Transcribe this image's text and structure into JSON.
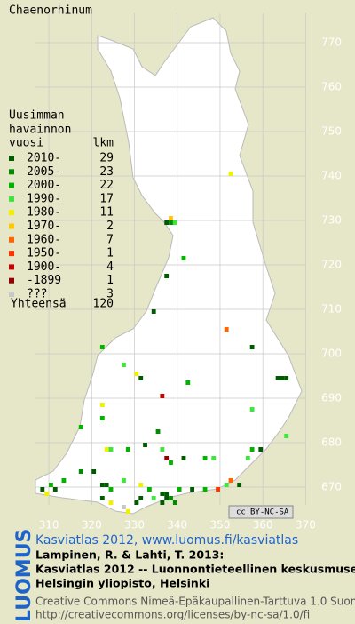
{
  "title": "Chaenorhinum",
  "legend": {
    "heading": [
      "Uusimman",
      "havainnon",
      "vuosi"
    ],
    "count_heading": "lkm",
    "entries": [
      {
        "label": "2010-",
        "count": 29,
        "color": "#005a00"
      },
      {
        "label": "2005-",
        "count": 23,
        "color": "#008c00"
      },
      {
        "label": "2000-",
        "count": 22,
        "color": "#00b400"
      },
      {
        "label": "1990-",
        "count": 17,
        "color": "#3ce63c"
      },
      {
        "label": "1980-",
        "count": 11,
        "color": "#f0f000"
      },
      {
        "label": "1970-",
        "count": 2,
        "color": "#ffc800"
      },
      {
        "label": "1960-",
        "count": 7,
        "color": "#ff6400"
      },
      {
        "label": "1950-",
        "count": 1,
        "color": "#ff3200"
      },
      {
        "label": "1900-",
        "count": 4,
        "color": "#c80000"
      },
      {
        "label": "-1899",
        "count": 1,
        "color": "#960000"
      },
      {
        "label": "???",
        "count": 3,
        "color": "#c8c8c8"
      }
    ],
    "total_label": "Yhteensä",
    "total": 120
  },
  "map": {
    "xlim": [
      299,
      378
    ],
    "ylim": [
      660,
      780
    ],
    "xticks": [
      310,
      320,
      330,
      340,
      350,
      360,
      370
    ],
    "yticks": [
      670,
      680,
      690,
      700,
      710,
      720,
      730,
      740,
      750,
      760,
      770
    ],
    "squares": [
      [
        352,
        740,
        4
      ],
      [
        338,
        730,
        5
      ],
      [
        337,
        729,
        0
      ],
      [
        338,
        729,
        1
      ],
      [
        339,
        729,
        3
      ],
      [
        341,
        721,
        2
      ],
      [
        337,
        717,
        0
      ],
      [
        334,
        709,
        0
      ],
      [
        351,
        705,
        6
      ],
      [
        322,
        701,
        2
      ],
      [
        357,
        701,
        0
      ],
      [
        327,
        697,
        3
      ],
      [
        330,
        695,
        4
      ],
      [
        331,
        694,
        0
      ],
      [
        342,
        693,
        2
      ],
      [
        363,
        694,
        0
      ],
      [
        364,
        694,
        0
      ],
      [
        365,
        694,
        0
      ],
      [
        336,
        690,
        8
      ],
      [
        322,
        688,
        4
      ],
      [
        322,
        685,
        2
      ],
      [
        357,
        687,
        3
      ],
      [
        317,
        683,
        2
      ],
      [
        335,
        682,
        1
      ],
      [
        365,
        681,
        3
      ],
      [
        323,
        678,
        4
      ],
      [
        324,
        678,
        3
      ],
      [
        328,
        678,
        2
      ],
      [
        332,
        679,
        0
      ],
      [
        336,
        678,
        3
      ],
      [
        337,
        676,
        9
      ],
      [
        338,
        675,
        2
      ],
      [
        341,
        676,
        0
      ],
      [
        346,
        676,
        2
      ],
      [
        348,
        676,
        3
      ],
      [
        356,
        676,
        3
      ],
      [
        357,
        678,
        2
      ],
      [
        359,
        678,
        0
      ],
      [
        310,
        670,
        2
      ],
      [
        308,
        669,
        0
      ],
      [
        311,
        669,
        0
      ],
      [
        309,
        668,
        4
      ],
      [
        313,
        671,
        2
      ],
      [
        317,
        673,
        1
      ],
      [
        322,
        670,
        0
      ],
      [
        323,
        670,
        0
      ],
      [
        324,
        669,
        2
      ],
      [
        327,
        671,
        3
      ],
      [
        331,
        670,
        4
      ],
      [
        333,
        669,
        2
      ],
      [
        336,
        668,
        0
      ],
      [
        337,
        668,
        0
      ],
      [
        337,
        667,
        0
      ],
      [
        338,
        667,
        1
      ],
      [
        340,
        669,
        2
      ],
      [
        343,
        669,
        0
      ],
      [
        346,
        669,
        2
      ],
      [
        349,
        669,
        7
      ],
      [
        351,
        670,
        3
      ],
      [
        352,
        671,
        6
      ],
      [
        354,
        670,
        0
      ],
      [
        324,
        666,
        4
      ],
      [
        327,
        665,
        10
      ],
      [
        328,
        664,
        4
      ],
      [
        330,
        666,
        0
      ],
      [
        331,
        667,
        0
      ],
      [
        334,
        667,
        3
      ],
      [
        336,
        666,
        0
      ],
      [
        339,
        666,
        1
      ],
      [
        320,
        673,
        0
      ],
      [
        322,
        667,
        0
      ]
    ]
  },
  "license_badge": [
    "cc",
    "BY-NC-SA"
  ],
  "footer": {
    "brand": "LUOMUS",
    "link": "Kasviatlas 2012, www.luomus.fi/kasviatlas",
    "citation": [
      "Lampinen, R. & Lahti, T. 2013:",
      "Kasviatlas 2012 -- Luonnontieteellinen keskusmuseo,",
      "Helsingin yliopisto, Helsinki"
    ],
    "license": [
      "Creative Commons Nimeä-Epäkaupallinen-Tarttuva 1.0 Suomi",
      "http://creativecommons.org/licenses/by-nc-sa/1.0/fi"
    ]
  }
}
